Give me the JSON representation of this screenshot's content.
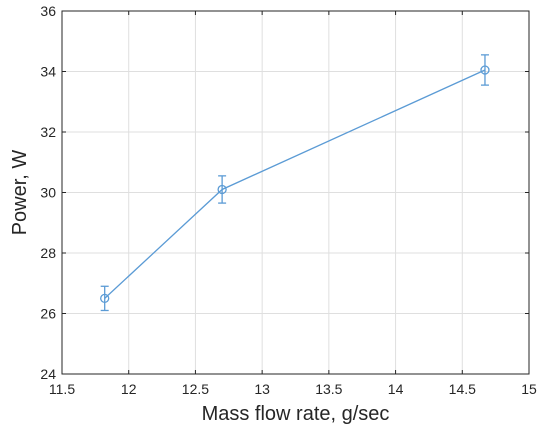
{
  "chart_data": {
    "type": "line",
    "title": "",
    "xlabel": "Mass flow rate, g/sec",
    "ylabel": "Power, W",
    "xlim": [
      11.5,
      15
    ],
    "ylim": [
      24,
      36
    ],
    "xticks": [
      11.5,
      12,
      12.5,
      13,
      13.5,
      14,
      14.5,
      15
    ],
    "xtick_labels": [
      "11.5",
      "12",
      "12.5",
      "13",
      "13.5",
      "14",
      "14.5",
      "15"
    ],
    "yticks": [
      24,
      26,
      28,
      30,
      32,
      34,
      36
    ],
    "ytick_labels": [
      "24",
      "26",
      "28",
      "30",
      "32",
      "34",
      "36"
    ],
    "grid": true,
    "series": [
      {
        "x": [
          11.82,
          12.7,
          14.67
        ],
        "y": [
          26.5,
          30.1,
          34.05
        ],
        "error": [
          0.4,
          0.45,
          0.5
        ],
        "color": "#5b9bd5",
        "marker": "circle"
      }
    ]
  }
}
